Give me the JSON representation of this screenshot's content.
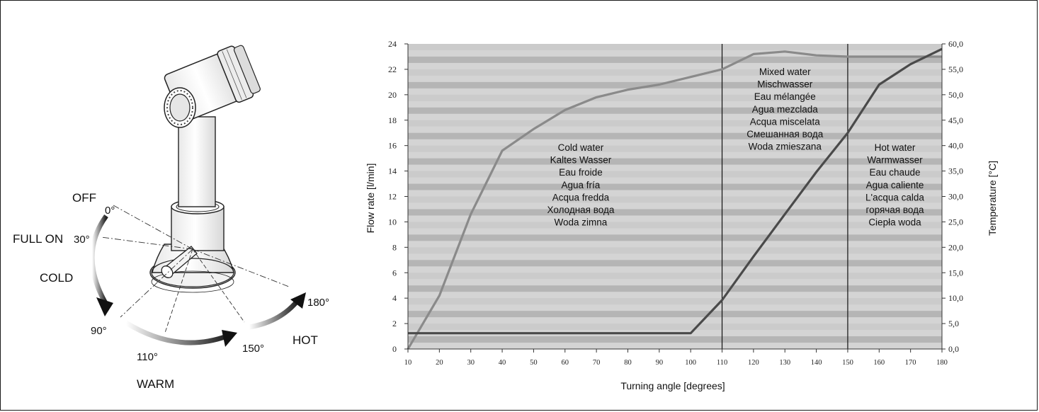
{
  "faucet": {
    "labels": {
      "off": "OFF",
      "zero": "0°",
      "full_on": "FULL ON",
      "thirty": "30°",
      "cold": "COLD",
      "ninety": "90°",
      "one_ten": "110°",
      "warm": "WARM",
      "one_fifty": "150°",
      "hot": "HOT",
      "one_eighty": "180°"
    }
  },
  "chart_data": {
    "type": "line",
    "title": "",
    "xlabel": "Turning angle [degrees]",
    "ylabel_left": "Flow rate [l/min]",
    "ylabel_right": "Temperature [°C]",
    "xlim": [
      10,
      180
    ],
    "ylim_left": [
      0,
      24
    ],
    "ylim_right": [
      0,
      60
    ],
    "grid": "horizontal alternating bands",
    "x_ticks": [
      "10",
      "20",
      "30",
      "40",
      "50",
      "60",
      "70",
      "80",
      "90",
      "100",
      "110",
      "120",
      "130",
      "140",
      "150",
      "160",
      "170",
      "180"
    ],
    "y_left_ticks": [
      "0",
      "2",
      "4",
      "6",
      "8",
      "10",
      "12",
      "14",
      "16",
      "18",
      "20",
      "22",
      "24"
    ],
    "y_right_ticks": [
      "0,0",
      "5,0",
      "10,0",
      "15,0",
      "20,0",
      "25,0",
      "30,0",
      "35,0",
      "40,0",
      "45,0",
      "50,0",
      "55,0",
      "60,0"
    ],
    "vertical_markers": [
      110,
      150
    ],
    "series": [
      {
        "axis": "left",
        "color": "#8a8a8a",
        "points": [
          [
            10,
            0
          ],
          [
            20,
            4.2
          ],
          [
            30,
            10.6
          ],
          [
            40,
            15.6
          ],
          [
            50,
            17.3
          ],
          [
            60,
            18.8
          ],
          [
            70,
            19.8
          ],
          [
            80,
            20.4
          ],
          [
            90,
            20.8
          ],
          [
            100,
            21.4
          ],
          [
            110,
            22
          ],
          [
            120,
            23.2
          ],
          [
            130,
            23.4
          ],
          [
            140,
            23.1
          ],
          [
            150,
            23
          ],
          [
            160,
            23
          ],
          [
            170,
            23
          ],
          [
            180,
            23
          ]
        ]
      },
      {
        "axis": "right",
        "color": "#4a4a4a",
        "points": [
          [
            10,
            3.1
          ],
          [
            100,
            3.1
          ],
          [
            110,
            9.6
          ],
          [
            120,
            18.2
          ],
          [
            130,
            26.5
          ],
          [
            140,
            34.8
          ],
          [
            150,
            42.5
          ],
          [
            160,
            52
          ],
          [
            170,
            56
          ],
          [
            180,
            59
          ]
        ]
      }
    ],
    "annotations": [
      {
        "x": 65,
        "lines": [
          "Cold water",
          "Kaltes Wasser",
          "Eau froide",
          "Agua fría",
          "Acqua fredda",
          "Холодная вода",
          "Woda zimna"
        ]
      },
      {
        "x": 130,
        "lines": [
          "Mixed water",
          "Mischwasser",
          "Eau mélangée",
          "Agua mezclada",
          "Acqua miscelata",
          "Смешанная вода",
          "Woda zmieszana"
        ]
      },
      {
        "x": 165,
        "lines": [
          "Hot water",
          "Warmwasser",
          "Eau chaude",
          "Agua caliente",
          "L'acqua calda",
          "горячая вода",
          "Ciepła woda"
        ]
      }
    ]
  }
}
